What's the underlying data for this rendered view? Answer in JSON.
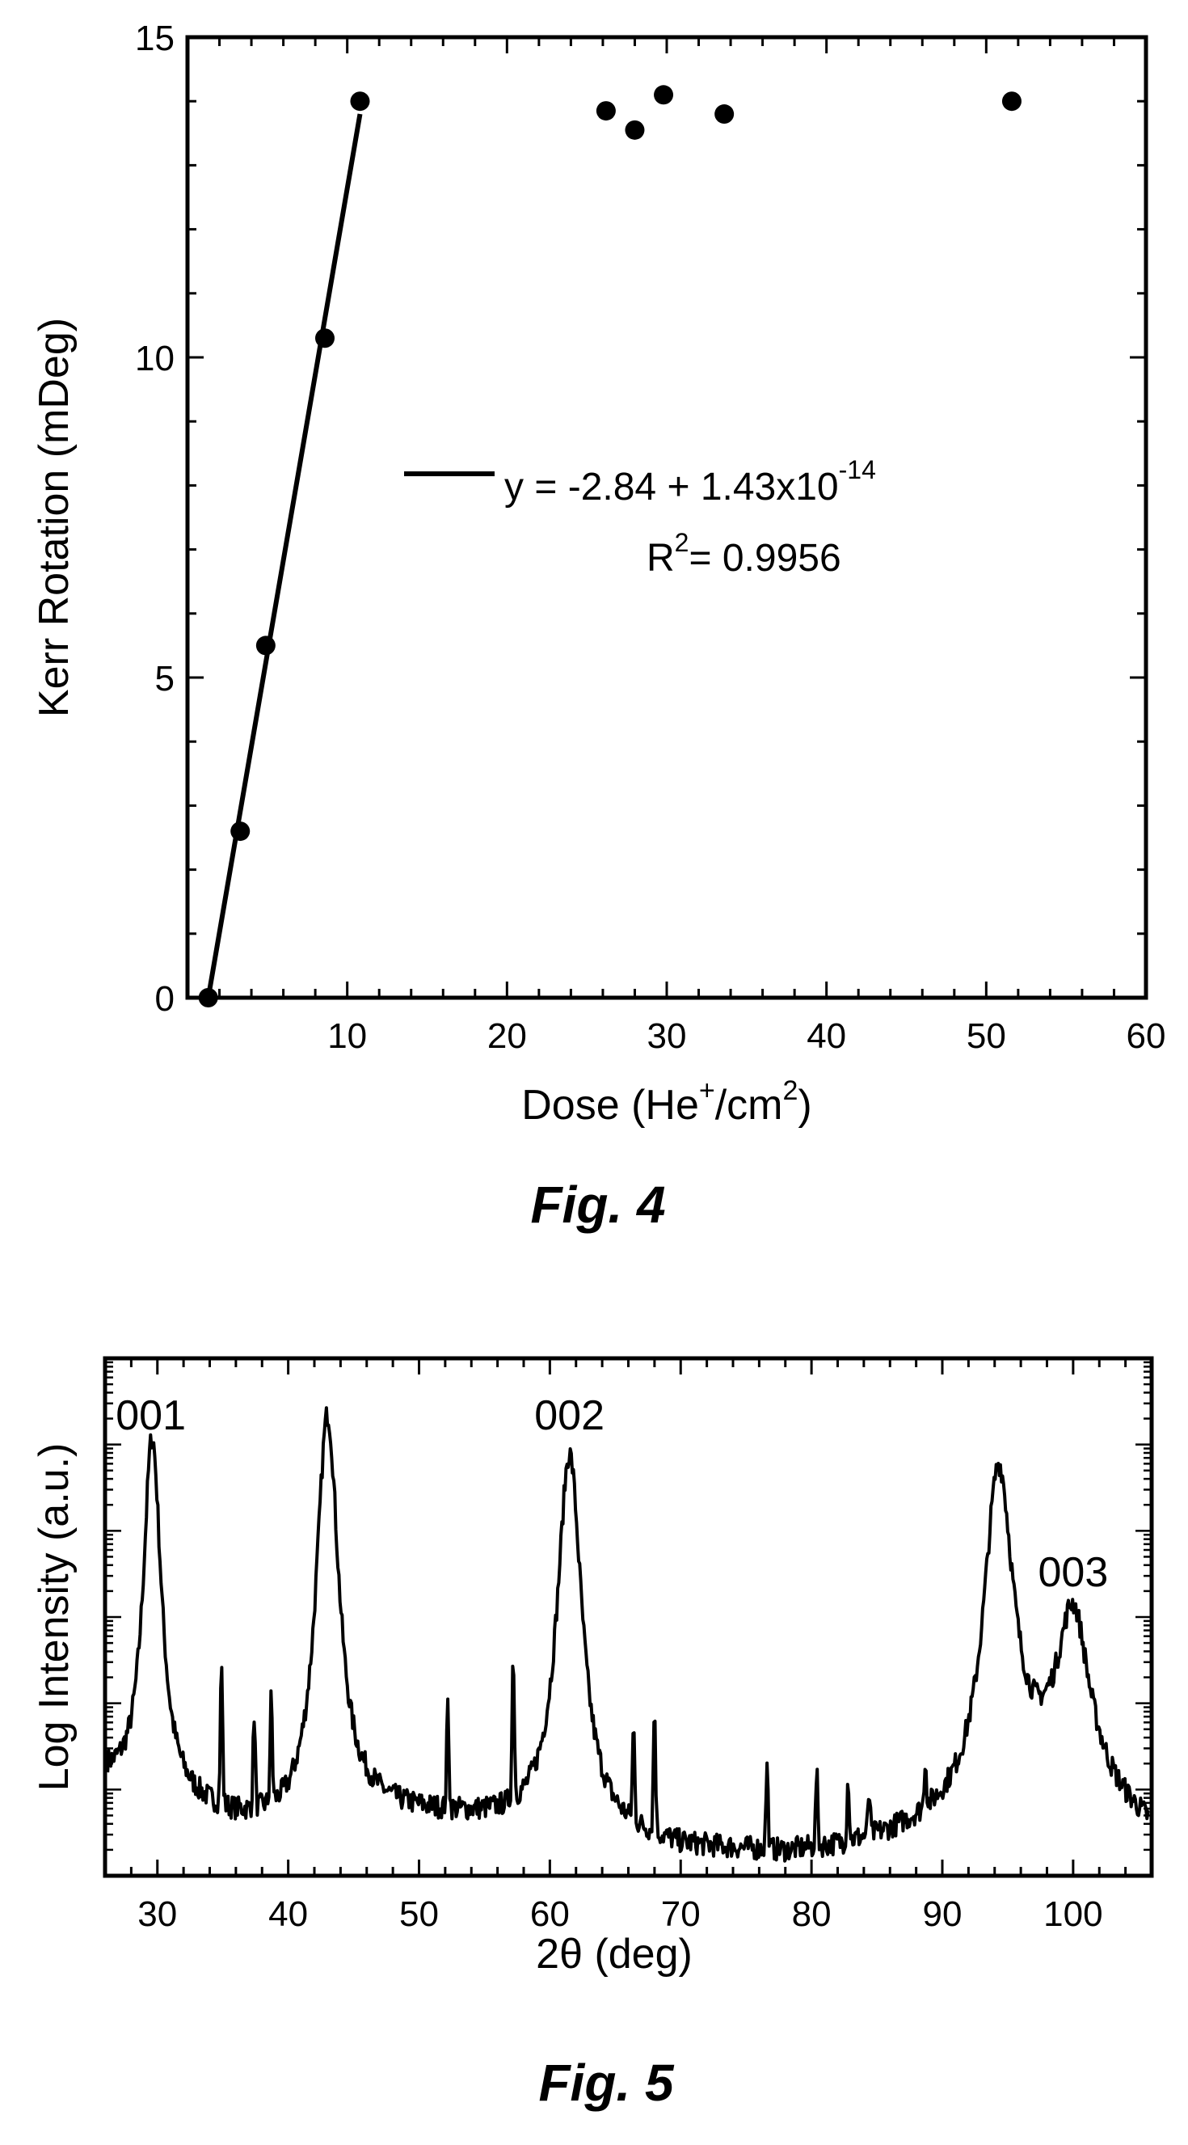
{
  "chart_data": [
    {
      "type": "scatter",
      "caption": "Fig. 4",
      "xlabel": "Dose (He",
      "xlabel_sup": "+",
      "xlabel_mid": "/cm",
      "xlabel_sup2": "2",
      "xlabel_end": ")",
      "ylabel": "Kerr Rotation (mDeg)",
      "xlim": [
        0,
        60
      ],
      "ylim": [
        0,
        15
      ],
      "xticks": [
        "10",
        "20",
        "30",
        "40",
        "50",
        "60"
      ],
      "yticks": [
        "0",
        "5",
        "10",
        "15"
      ],
      "points": {
        "x": [
          1.3,
          3.3,
          4.9,
          8.6,
          10.8,
          26.2,
          28.0,
          29.8,
          33.6,
          51.6
        ],
        "y": [
          0,
          2.6,
          5.5,
          10.3,
          14.0,
          13.85,
          13.55,
          14.1,
          13.8,
          14.0
        ]
      },
      "fit_line": {
        "x": [
          1.3,
          10.8
        ],
        "y": [
          0,
          13.8
        ]
      },
      "legend": {
        "equation": "y = -2.84 + 1.43x10",
        "equation_exp": "-14",
        "r2_label": "R",
        "r2_sup": "2",
        "r2_value": "= 0.9956",
        "position": "center"
      },
      "grid": false
    },
    {
      "type": "line",
      "caption": "Fig. 5",
      "xlabel": "2θ (deg)",
      "ylabel": "Log Intensity (a.u.)",
      "xlim": [
        26,
        106
      ],
      "log_scale_y": true,
      "xticks": [
        "30",
        "40",
        "50",
        "60",
        "70",
        "80",
        "90",
        "100"
      ],
      "peak_labels": [
        {
          "text": "001",
          "x": 29.5
        },
        {
          "text": "002",
          "x": 61.5
        },
        {
          "text": "003",
          "x": 100.0
        }
      ],
      "background": [
        [
          26,
          0.18
        ],
        [
          28,
          0.15
        ],
        [
          32,
          0.13
        ],
        [
          36,
          0.1
        ],
        [
          40,
          0.09
        ],
        [
          46,
          0.12
        ],
        [
          52,
          0.11
        ],
        [
          56,
          0.1
        ],
        [
          62,
          0.09
        ],
        [
          66,
          0.07
        ],
        [
          70,
          0.05
        ],
        [
          74,
          0.045
        ],
        [
          78,
          0.04
        ],
        [
          82,
          0.05
        ],
        [
          86,
          0.07
        ],
        [
          90,
          0.1
        ],
        [
          94,
          0.13
        ],
        [
          98,
          0.16
        ],
        [
          102,
          0.14
        ],
        [
          106,
          0.08
        ]
      ],
      "broad_peaks": [
        {
          "center": 29.6,
          "height": 0.8,
          "width": 0.85
        },
        {
          "center": 43.0,
          "height": 0.88,
          "width": 1.05
        },
        {
          "center": 61.5,
          "height": 0.82,
          "width": 1.15
        },
        {
          "center": 94.3,
          "height": 0.74,
          "width": 1.4
        },
        {
          "center": 100.0,
          "height": 0.44,
          "width": 1.5
        }
      ],
      "sharp_peaks": [
        {
          "center": 34.9,
          "height": 0.27
        },
        {
          "center": 37.4,
          "height": 0.18
        },
        {
          "center": 38.7,
          "height": 0.2
        },
        {
          "center": 52.2,
          "height": 0.2
        },
        {
          "center": 57.2,
          "height": 0.28
        },
        {
          "center": 66.4,
          "height": 0.18
        },
        {
          "center": 68.0,
          "height": 0.24
        },
        {
          "center": 76.6,
          "height": 0.16
        },
        {
          "center": 80.4,
          "height": 0.14
        },
        {
          "center": 82.8,
          "height": 0.12
        },
        {
          "center": 84.4,
          "height": 0.08
        },
        {
          "center": 88.7,
          "height": 0.09
        }
      ],
      "grid": false
    }
  ]
}
